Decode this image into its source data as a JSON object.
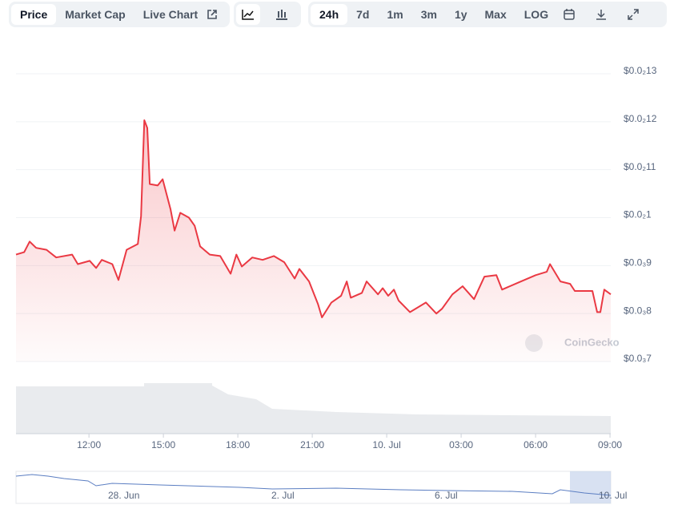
{
  "toolbar": {
    "tabs": [
      "Price",
      "Market Cap",
      "Live Chart"
    ],
    "ranges": [
      "24h",
      "7d",
      "1m",
      "3m",
      "1y",
      "Max",
      "LOG"
    ]
  },
  "watermark": "CoinGecko",
  "navigator": {
    "labels": [
      "28. Jun",
      "2. Jul",
      "6. Jul",
      "10. Jul"
    ]
  },
  "chart_data": {
    "type": "line",
    "x": [
      9.06,
      9.39,
      9.61,
      9.87,
      10.29,
      10.68,
      11.32,
      11.55,
      12.03,
      12.29,
      12.52,
      12.94,
      13.19,
      13.52,
      13.97,
      14.1,
      14.23,
      14.35,
      14.45,
      14.77,
      14.97,
      15.29,
      15.45,
      15.68,
      16.03,
      16.26,
      16.48,
      16.87,
      17.29,
      17.71,
      17.94,
      18.16,
      18.58,
      19.0,
      19.45,
      19.87,
      20.29,
      20.48,
      20.87,
      21.23,
      21.39,
      21.77,
      22.16,
      22.39,
      22.55,
      23.0,
      23.19,
      23.65,
      23.84,
      24.06,
      24.29,
      24.48,
      24.94,
      25.58,
      26.0,
      26.23,
      26.65,
      27.06,
      27.52,
      27.94,
      28.42,
      28.65,
      29.32,
      30.0,
      30.45,
      30.58,
      31.0,
      31.39,
      31.58,
      32.29,
      32.48,
      32.61,
      32.77,
      33.03
    ],
    "series": [
      {
        "name": "Price",
        "color": "#ea3943",
        "values": [
          0.000923,
          0.000928,
          0.00095,
          0.000937,
          0.000933,
          0.000917,
          0.000923,
          0.000903,
          0.00091,
          0.000895,
          0.000912,
          0.000903,
          0.00087,
          0.000933,
          0.000945,
          0.001003,
          0.001203,
          0.001187,
          0.00107,
          0.001067,
          0.00108,
          0.001017,
          0.000973,
          0.00101,
          0.001,
          0.000983,
          0.00094,
          0.000923,
          0.00092,
          0.000883,
          0.000923,
          0.000898,
          0.000917,
          0.000912,
          0.00092,
          0.000907,
          0.000873,
          0.000893,
          0.000867,
          0.00082,
          0.000792,
          0.000823,
          0.000837,
          0.000867,
          0.000833,
          0.000843,
          0.000867,
          0.00084,
          0.000853,
          0.000837,
          0.00085,
          0.000827,
          0.000803,
          0.000823,
          0.0008,
          0.00081,
          0.00084,
          0.000857,
          0.00083,
          0.000877,
          0.00088,
          0.00085,
          0.000865,
          0.00088,
          0.000887,
          0.000903,
          0.000867,
          0.000862,
          0.000847,
          0.000847,
          0.000803,
          0.000803,
          0.00085,
          0.00084
        ]
      }
    ],
    "xlim": [
      9.06,
      33.03
    ],
    "xticks": [
      {
        "value": 12,
        "label": "12:00"
      },
      {
        "value": 15,
        "label": "15:00"
      },
      {
        "value": 18,
        "label": "18:00"
      },
      {
        "value": 21,
        "label": "21:00"
      },
      {
        "value": 24,
        "label": "10. Jul"
      },
      {
        "value": 27,
        "label": "03:00"
      },
      {
        "value": 30,
        "label": "06:00"
      },
      {
        "value": 33,
        "label": "09:00"
      }
    ],
    "ylim": [
      0.0007,
      0.0013
    ],
    "yticks": [
      {
        "value": 0.0013,
        "label": "$0.0₂13"
      },
      {
        "value": 0.0012,
        "label": "$0.0₂12"
      },
      {
        "value": 0.0011,
        "label": "$0.0₂11"
      },
      {
        "value": 0.001,
        "label": "$0.0₂1"
      },
      {
        "value": 0.0009,
        "label": "$0.0₃9"
      },
      {
        "value": 0.0008,
        "label": "$0.0₃8"
      },
      {
        "value": 0.0007,
        "label": "$0.0₃7"
      }
    ],
    "grid": true
  }
}
